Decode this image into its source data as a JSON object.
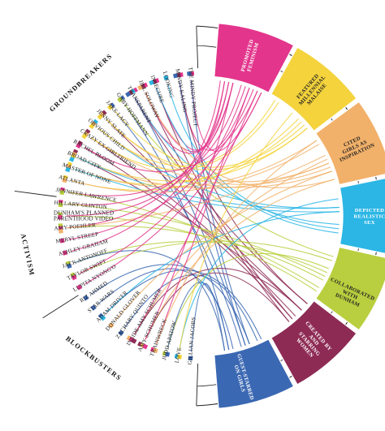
{
  "groups": [
    {
      "name": "GROUNDBREAKERS",
      "from": 0,
      "to": 15
    },
    {
      "name": "ACTIVISM",
      "from": 16,
      "to": 23
    },
    {
      "name": "BLOCKBUSTERS",
      "from": 24,
      "to": 31
    }
  ],
  "items": [
    "THE MINDY PROJECT",
    "MINDY KALING",
    "LOOKING",
    "INSECURE",
    "JILL SOLOWAY",
    "TRANSPARENT",
    "GABY HOFFMANN",
    "JAKE LACY",
    "JENNY SLATE",
    "OBVIOUS CHILD",
    "CRAZY EX GIRLFRIEND",
    "RACHEL BLOOM",
    "BROAD CITY",
    "MASTER OF NONE",
    "ATLANTA",
    "JENNIFER LAWRENCE",
    "HILLARY CLINTON",
    "DUNHAM'S PLANNED PARENTHOOD VIDEO",
    "AMY POEHLER",
    "MERYL STREEP",
    "ASHLEY GRAHAM",
    "JACK ANTONOFF",
    "TAYLOR SWIFT",
    "LUPITA NYONG'O",
    "RIZ AHMED",
    "STAR WARS",
    "ADAM DRIVER",
    "DONALD GLOVER",
    "ZACHARY QUINTO",
    "INSIDE AMY SCHUMER",
    "AMY SCHUMER",
    "TRAINWRECK",
    "JUDD APATOW",
    "LOVE",
    "GILLIAN JACOBS"
  ],
  "categories": [
    {
      "label": "PROMOTED FEMINISM",
      "color": "#e3358c",
      "text_color": "#ffffff"
    },
    {
      "label": "FEATURED MILLENNIAL MALAISE",
      "color": "#f4d33c",
      "text_color": "#222222"
    },
    {
      "label": "CITED GIRLS AS INSPIRATION",
      "color": "#f2b16a",
      "text_color": "#222222"
    },
    {
      "label": "DEPICTED REALISTIC SEX",
      "color": "#2bb6e5",
      "text_color": "#ffffff"
    },
    {
      "label": "COLLABORATED WITH DUNHAM",
      "color": "#b9cf3f",
      "text_color": "#222222"
    },
    {
      "label": "CREATED BY AND STARRING WOMEN",
      "color": "#8e2b55",
      "text_color": "#ffffff"
    },
    {
      "label": "GUEST-STARRED ON GIRLS",
      "color": "#3b68b3",
      "text_color": "#ffffff"
    }
  ],
  "links": [
    [
      0,
      0
    ],
    [
      0,
      6
    ],
    [
      1,
      0
    ],
    [
      1,
      5
    ],
    [
      1,
      6
    ],
    [
      2,
      3
    ],
    [
      3,
      0
    ],
    [
      3,
      5
    ],
    [
      3,
      3
    ],
    [
      4,
      0
    ],
    [
      4,
      5
    ],
    [
      4,
      2
    ],
    [
      5,
      0
    ],
    [
      5,
      3
    ],
    [
      5,
      5
    ],
    [
      5,
      6
    ],
    [
      6,
      6
    ],
    [
      6,
      4
    ],
    [
      7,
      6
    ],
    [
      7,
      1
    ],
    [
      8,
      5
    ],
    [
      8,
      2
    ],
    [
      8,
      1
    ],
    [
      9,
      3
    ],
    [
      9,
      2
    ],
    [
      9,
      1
    ],
    [
      10,
      5
    ],
    [
      10,
      2
    ],
    [
      10,
      1
    ],
    [
      11,
      5
    ],
    [
      11,
      0
    ],
    [
      12,
      5
    ],
    [
      12,
      2
    ],
    [
      12,
      1
    ],
    [
      12,
      3
    ],
    [
      13,
      1
    ],
    [
      13,
      2
    ],
    [
      13,
      3
    ],
    [
      14,
      1
    ],
    [
      14,
      2
    ],
    [
      15,
      0
    ],
    [
      15,
      4
    ],
    [
      16,
      0
    ],
    [
      16,
      4
    ],
    [
      17,
      4
    ],
    [
      17,
      0
    ],
    [
      18,
      4
    ],
    [
      18,
      0
    ],
    [
      18,
      2
    ],
    [
      19,
      0
    ],
    [
      20,
      0
    ],
    [
      21,
      4
    ],
    [
      21,
      6
    ],
    [
      22,
      4
    ],
    [
      22,
      0
    ],
    [
      23,
      0
    ],
    [
      24,
      6
    ],
    [
      25,
      6
    ],
    [
      26,
      6
    ],
    [
      26,
      3
    ],
    [
      27,
      2
    ],
    [
      28,
      6
    ],
    [
      29,
      2
    ],
    [
      29,
      0
    ],
    [
      29,
      5
    ],
    [
      30,
      5
    ],
    [
      30,
      2
    ],
    [
      30,
      0
    ],
    [
      31,
      0
    ],
    [
      31,
      2
    ],
    [
      32,
      4
    ],
    [
      32,
      6
    ],
    [
      33,
      3
    ],
    [
      33,
      1
    ],
    [
      34,
      6
    ]
  ]
}
